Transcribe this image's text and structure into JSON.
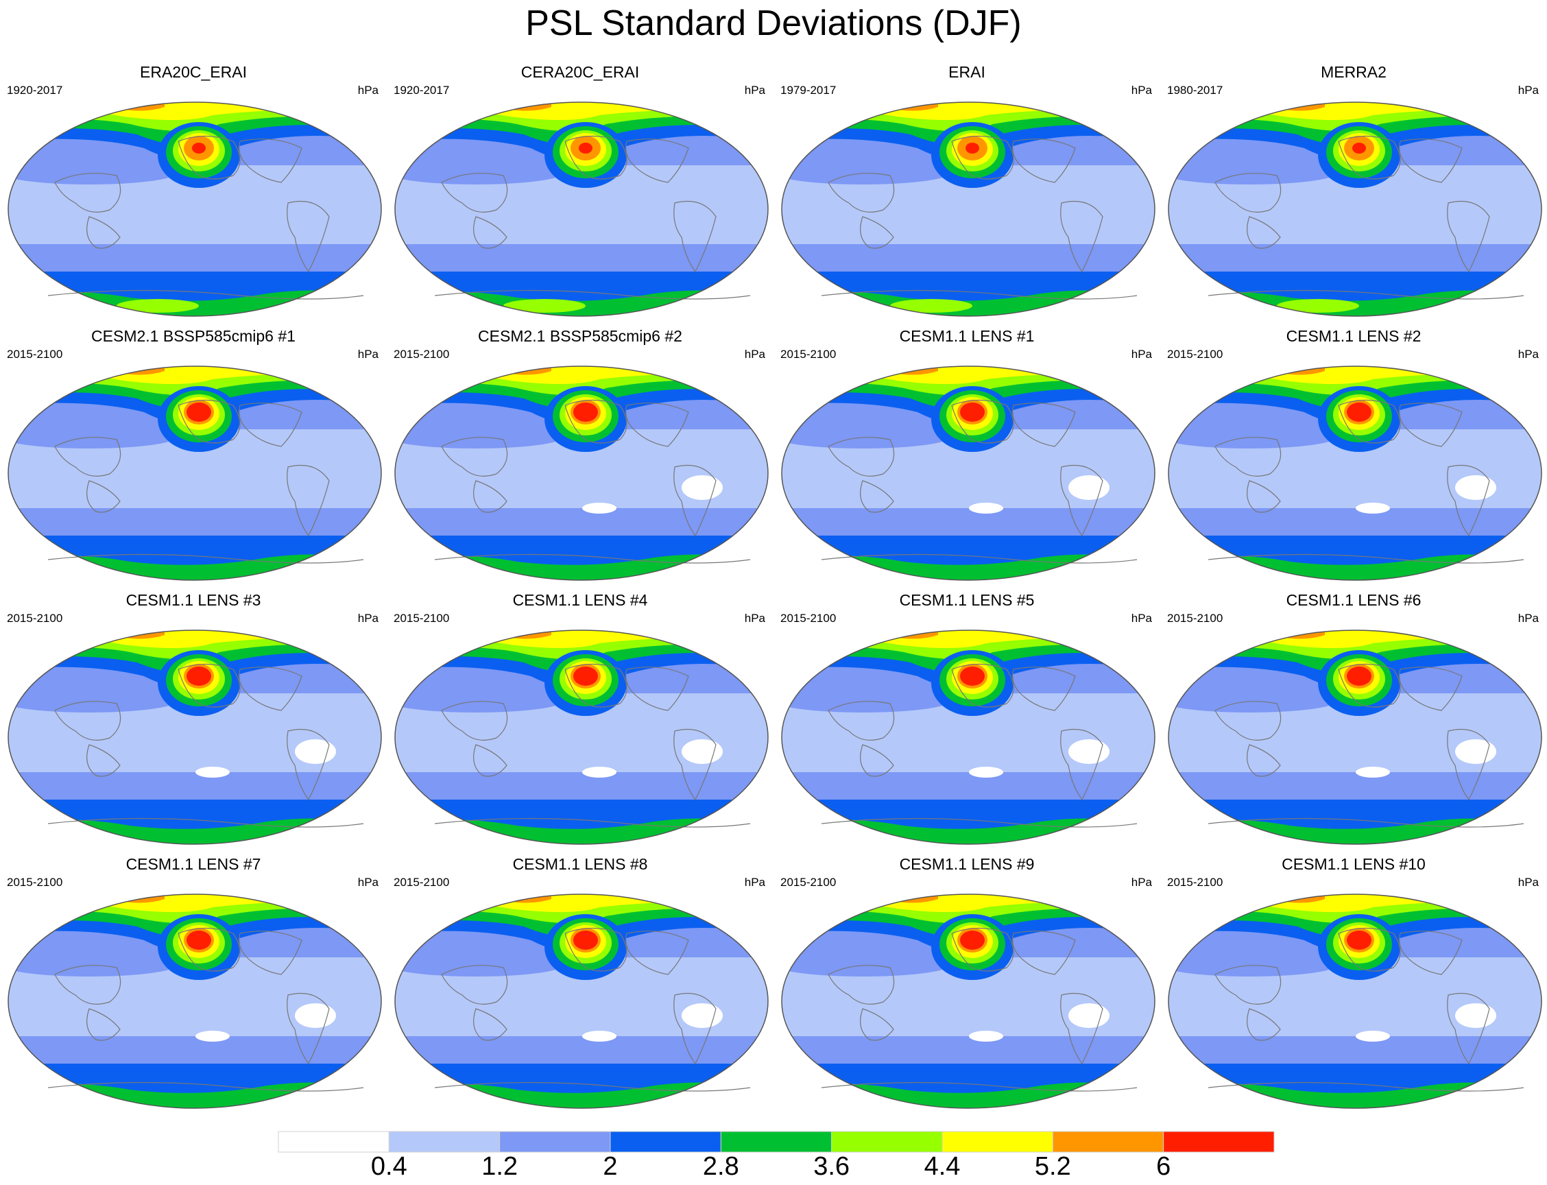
{
  "title": "PSL Standard Deviations (DJF)",
  "units": "hPa",
  "panels": [
    {
      "title": "ERA20C_ERAI",
      "period": "1920-2017"
    },
    {
      "title": "CERA20C_ERAI",
      "period": "1920-2017"
    },
    {
      "title": "ERAI",
      "period": "1979-2017"
    },
    {
      "title": "MERRA2",
      "period": "1980-2017"
    },
    {
      "title": "CESM2.1 BSSP585cmip6 #1",
      "period": "2015-2100"
    },
    {
      "title": "CESM2.1 BSSP585cmip6 #2",
      "period": "2015-2100"
    },
    {
      "title": "CESM1.1 LENS #1",
      "period": "2015-2100"
    },
    {
      "title": "CESM1.1 LENS #2",
      "period": "2015-2100"
    },
    {
      "title": "CESM1.1 LENS #3",
      "period": "2015-2100"
    },
    {
      "title": "CESM1.1 LENS #4",
      "period": "2015-2100"
    },
    {
      "title": "CESM1.1 LENS #5",
      "period": "2015-2100"
    },
    {
      "title": "CESM1.1 LENS #6",
      "period": "2015-2100"
    },
    {
      "title": "CESM1.1 LENS #7",
      "period": "2015-2100"
    },
    {
      "title": "CESM1.1 LENS #8",
      "period": "2015-2100"
    },
    {
      "title": "CESM1.1 LENS #9",
      "period": "2015-2100"
    },
    {
      "title": "CESM1.1 LENS #10",
      "period": "2015-2100"
    }
  ],
  "colorbar": {
    "labels": [
      "0.4",
      "1.2",
      "2",
      "2.8",
      "3.6",
      "4.4",
      "5.2",
      "6"
    ],
    "colors": [
      "#ffffff",
      "#b4c8fa",
      "#7d98f5",
      "#0a5ff0",
      "#00c032",
      "#96ff00",
      "#ffff00",
      "#ff9600",
      "#ff1e00"
    ]
  }
}
